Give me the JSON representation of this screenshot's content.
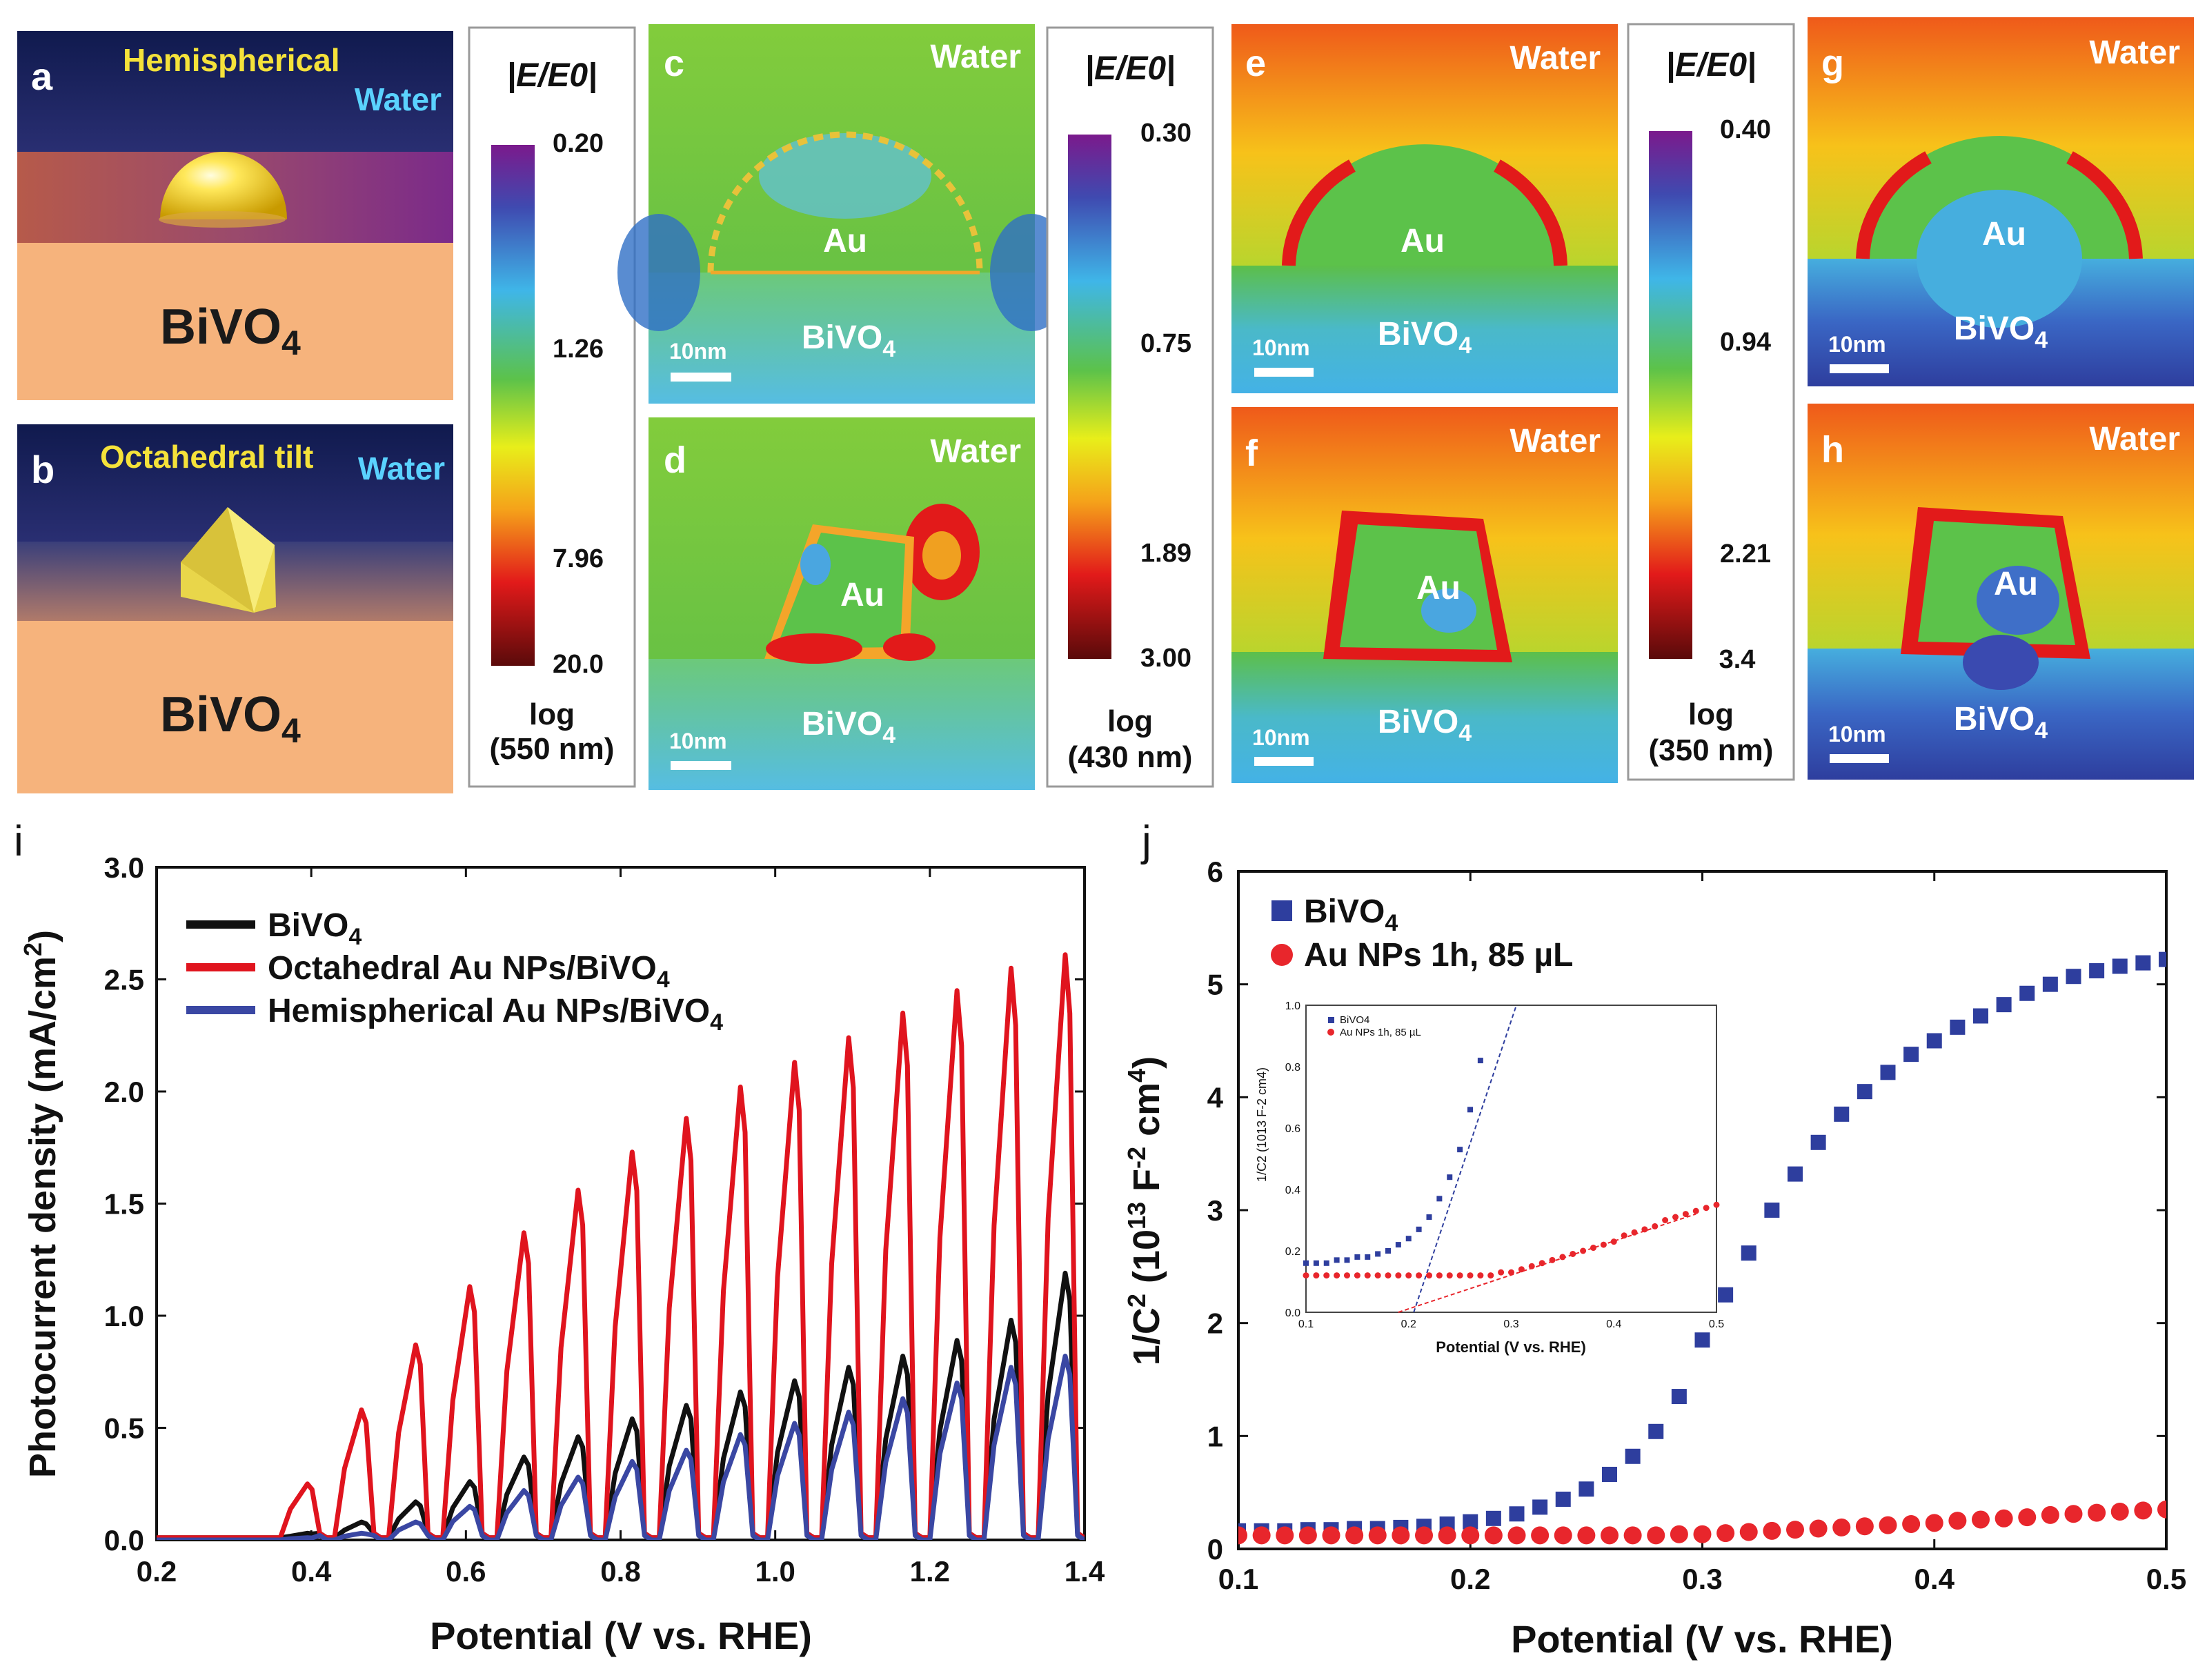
{
  "figure": {
    "panel_labels": {
      "a": "a",
      "b": "b",
      "c": "c",
      "d": "d",
      "e": "e",
      "f": "f",
      "g": "g",
      "h": "h",
      "i": "i",
      "j": "j"
    },
    "panel_a": {
      "shape": "Hemispherical",
      "medium": "Water",
      "substrate": "BiVO",
      "substrate_sub": "4"
    },
    "panel_b": {
      "shape": "Octahedral tilt",
      "medium": "Water",
      "substrate": "BiVO",
      "substrate_sub": "4"
    },
    "map_labels": {
      "water": "Water",
      "au": "Au",
      "bivo": "BiVO",
      "bivo_sub": "4",
      "scale": "10nm"
    },
    "colorbars": [
      {
        "title": "|E/E0|",
        "top": "0.20",
        "mid": "1.26",
        "low": "7.96",
        "bottom": "20.0",
        "scale_label": "log",
        "wavelength": "(550 nm)"
      },
      {
        "title": "|E/E0|",
        "top": "0.30",
        "mid": "0.75",
        "low": "1.89",
        "bottom": "3.00",
        "scale_label": "log",
        "wavelength": "(430 nm)"
      },
      {
        "title": "|E/E0|",
        "top": "0.40",
        "mid": "0.94",
        "low": "2.21",
        "bottom": "3.4",
        "scale_label": "log",
        "wavelength": "(350 nm)"
      }
    ],
    "colors": {
      "black": "#111111",
      "red": "#e0141e",
      "blue": "#3a47a3",
      "navy": "#2e3e9e",
      "dotred": "#e8262c"
    }
  },
  "chart_data": [
    {
      "type": "line",
      "panel": "i",
      "xlabel": "Potential (V vs. RHE)",
      "ylabel": "Photocurrent density (mA/cm2)",
      "xlim": [
        0.2,
        1.4
      ],
      "ylim": [
        0,
        3.0
      ],
      "xticks": [
        "0.2",
        "0.4",
        "0.6",
        "0.8",
        "1.0",
        "1.2",
        "1.4"
      ],
      "yticks": [
        "0.0",
        "0.5",
        "1.0",
        "1.5",
        "2.0",
        "2.5",
        "3.0"
      ],
      "chop_light_on": [
        0.365,
        0.435,
        0.505,
        0.575,
        0.645,
        0.715,
        0.785,
        0.855,
        0.925,
        0.995,
        1.065,
        1.135,
        1.205,
        1.275,
        1.345
      ],
      "series": [
        {
          "name": "BiVO4",
          "name_text": "BiVO",
          "name_sub": "4",
          "color": "#111111",
          "peaks": [
            0.03,
            0.08,
            0.17,
            0.26,
            0.37,
            0.46,
            0.54,
            0.6,
            0.66,
            0.71,
            0.77,
            0.82,
            0.89,
            0.98,
            1.19
          ],
          "dark": 0.01
        },
        {
          "name": "Octahedral Au NPs/BiVO4",
          "name_text": "Octahedral Au NPs/BiVO",
          "name_sub": "4",
          "color": "#e0141e",
          "peaks": [
            0.25,
            0.58,
            0.87,
            1.13,
            1.37,
            1.56,
            1.73,
            1.88,
            2.02,
            2.13,
            2.24,
            2.35,
            2.45,
            2.55,
            2.61
          ],
          "dark": 0.01
        },
        {
          "name": "Hemispherical Au NPs/BiVO4",
          "name_text": "Hemispherical Au NPs/BiVO",
          "name_sub": "4",
          "color": "#3a47a3",
          "peaks": [
            0.01,
            0.03,
            0.08,
            0.15,
            0.22,
            0.28,
            0.35,
            0.4,
            0.47,
            0.52,
            0.57,
            0.63,
            0.7,
            0.77,
            0.82
          ],
          "dark": 0.0
        }
      ]
    },
    {
      "type": "scatter",
      "panel": "j",
      "xlabel": "Potential (V vs. RHE)",
      "ylabel": "1/C2 (1013 F-2 cm4)",
      "xlim": [
        0.1,
        0.5
      ],
      "ylim": [
        0,
        6
      ],
      "xticks": [
        "0.1",
        "0.2",
        "0.3",
        "0.4",
        "0.5"
      ],
      "yticks": [
        "0",
        "1",
        "2",
        "3",
        "4",
        "5",
        "6"
      ],
      "series": [
        {
          "name": "BiVO4",
          "name_text": "BiVO",
          "name_sub": "4",
          "color": "#2e3e9e",
          "marker": "square",
          "x": [
            0.1,
            0.11,
            0.12,
            0.13,
            0.14,
            0.15,
            0.16,
            0.17,
            0.18,
            0.19,
            0.2,
            0.21,
            0.22,
            0.23,
            0.24,
            0.25,
            0.26,
            0.27,
            0.28,
            0.29,
            0.3,
            0.31,
            0.32,
            0.33,
            0.34,
            0.35,
            0.36,
            0.37,
            0.38,
            0.39,
            0.4,
            0.41,
            0.42,
            0.43,
            0.44,
            0.45,
            0.46,
            0.47,
            0.48,
            0.49,
            0.5
          ],
          "y": [
            0.16,
            0.16,
            0.16,
            0.17,
            0.17,
            0.18,
            0.18,
            0.19,
            0.2,
            0.22,
            0.24,
            0.27,
            0.31,
            0.37,
            0.44,
            0.53,
            0.66,
            0.82,
            1.04,
            1.35,
            1.85,
            2.25,
            2.62,
            3.0,
            3.32,
            3.6,
            3.85,
            4.05,
            4.22,
            4.38,
            4.5,
            4.62,
            4.72,
            4.82,
            4.92,
            5.0,
            5.07,
            5.12,
            5.16,
            5.19,
            5.22
          ]
        },
        {
          "name": "Au NPs 1h, 85 µL",
          "name_text": "Au NPs 1h, 85 µL",
          "color": "#e8262c",
          "marker": "circle",
          "x": [
            0.1,
            0.11,
            0.12,
            0.13,
            0.14,
            0.15,
            0.16,
            0.17,
            0.18,
            0.19,
            0.2,
            0.21,
            0.22,
            0.23,
            0.24,
            0.25,
            0.26,
            0.27,
            0.28,
            0.29,
            0.3,
            0.31,
            0.32,
            0.33,
            0.34,
            0.35,
            0.36,
            0.37,
            0.38,
            0.39,
            0.4,
            0.41,
            0.42,
            0.43,
            0.44,
            0.45,
            0.46,
            0.47,
            0.48,
            0.49,
            0.5
          ],
          "y": [
            0.12,
            0.12,
            0.12,
            0.12,
            0.12,
            0.12,
            0.12,
            0.12,
            0.12,
            0.12,
            0.12,
            0.12,
            0.12,
            0.12,
            0.12,
            0.12,
            0.12,
            0.12,
            0.12,
            0.13,
            0.13,
            0.14,
            0.15,
            0.16,
            0.17,
            0.18,
            0.19,
            0.2,
            0.21,
            0.22,
            0.23,
            0.25,
            0.26,
            0.27,
            0.28,
            0.3,
            0.31,
            0.32,
            0.33,
            0.34,
            0.35
          ]
        }
      ],
      "inset": {
        "xlabel": "Potential (V vs. RHE)",
        "ylabel": "1/C2 (1013 F-2 cm4)",
        "xlim": [
          0.1,
          0.5
        ],
        "ylim": [
          0,
          1.0
        ],
        "xticks": [
          "0.1",
          "0.2",
          "0.3",
          "0.4",
          "0.5"
        ],
        "yticks": [
          "0.0",
          "0.2",
          "0.4",
          "0.6",
          "0.8",
          "1.0"
        ],
        "legend": [
          "BiVO4",
          "Au NPs 1h, 85 µL"
        ],
        "fit_lines": [
          {
            "x": [
              0.205,
              0.305
            ],
            "y": [
              0.0,
              1.0
            ]
          },
          {
            "x": [
              0.19,
              0.48
            ],
            "y": [
              0.0,
              0.32
            ]
          }
        ]
      }
    }
  ]
}
